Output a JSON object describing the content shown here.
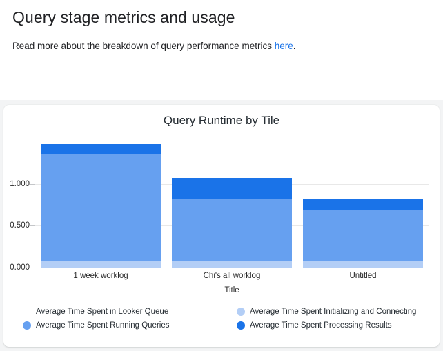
{
  "header": {
    "title": "Query stage metrics and usage",
    "description_prefix": "Read more about the breakdown of query performance metrics ",
    "link_text": "here",
    "description_suffix": "."
  },
  "chart_data": {
    "type": "bar",
    "stacked": true,
    "title": "Query Runtime by Tile",
    "xlabel": "Title",
    "ylabel": "",
    "categories": [
      "1 week worklog",
      "Chi's all worklog",
      "Untitled"
    ],
    "series": [
      {
        "name": "Average Time Spent in Looker Queue",
        "color": "#FFFFFF",
        "values": [
          0,
          0,
          0
        ]
      },
      {
        "name": "Average Time Spent Initializing and Connecting",
        "color": "#B3CEF6",
        "values": [
          0.083,
          0.083,
          0.083
        ]
      },
      {
        "name": "Average Time Spent Running Queries",
        "color": "#66A0F0",
        "values": [
          1.273,
          0.736,
          0.612
        ]
      },
      {
        "name": "Average Time Spent Processing Results",
        "color": "#1A73E8",
        "values": [
          0.124,
          0.256,
          0.124
        ]
      }
    ],
    "totals": [
      1.48,
      1.075,
      0.819
    ],
    "ylim": [
      0,
      1.57
    ],
    "yticks": [
      {
        "label": "0.000",
        "value": 0
      },
      {
        "label": "0.500",
        "value": 0.5
      },
      {
        "label": "1.000",
        "value": 1.0
      }
    ],
    "grid": true,
    "legend_position": "bottom"
  }
}
